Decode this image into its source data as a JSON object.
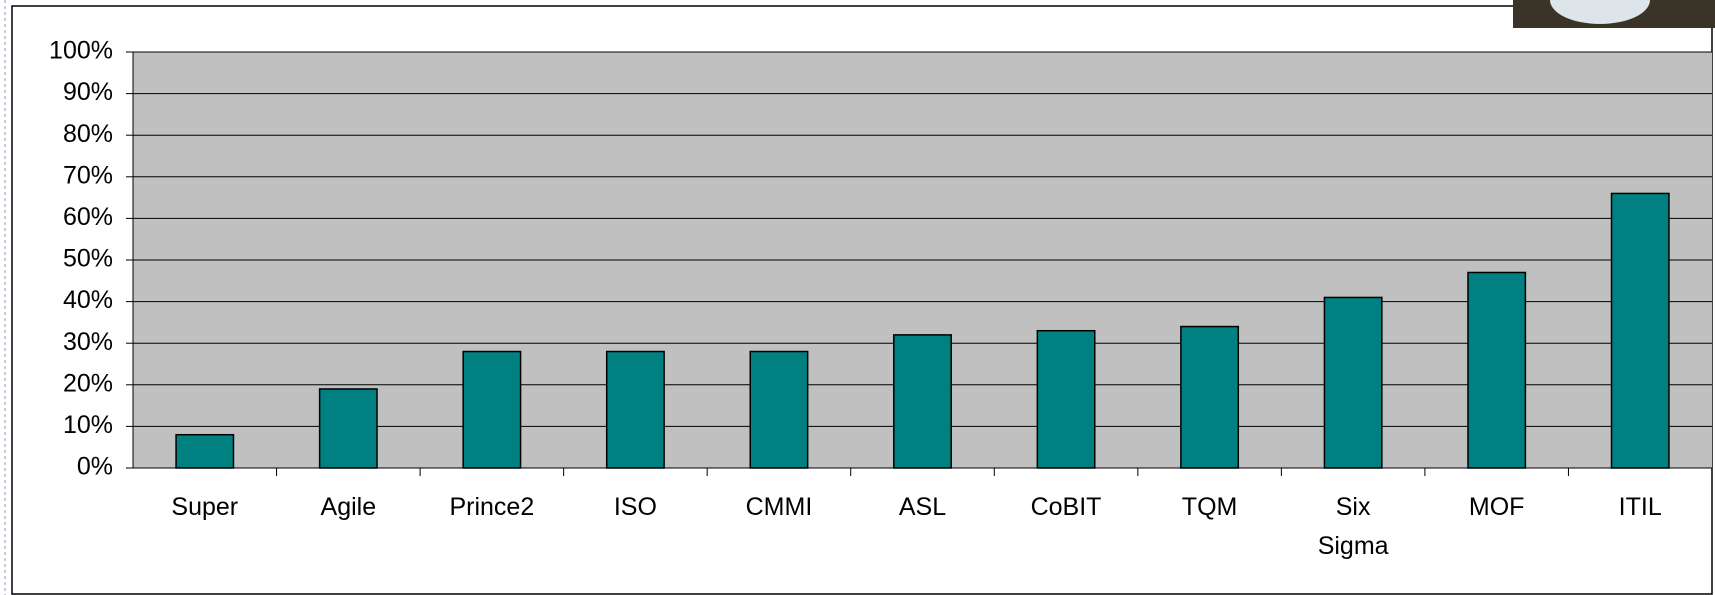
{
  "chart_data": {
    "type": "bar",
    "categories": [
      "Super",
      "Agile",
      "Prince2",
      "ISO",
      "CMMI",
      "ASL",
      "CoBIT",
      "TQM",
      "Six Sigma",
      "MOF",
      "ITIL"
    ],
    "values": [
      8,
      19,
      28,
      28,
      28,
      32,
      33,
      34,
      41,
      47,
      66
    ],
    "color": "#008080",
    "ylim": [
      0,
      100
    ],
    "yticks": [
      {
        "value": 0,
        "label": "0%"
      },
      {
        "value": 10,
        "label": "10%"
      },
      {
        "value": 20,
        "label": "20%"
      },
      {
        "value": 30,
        "label": "30%"
      },
      {
        "value": 40,
        "label": "40%"
      },
      {
        "value": 50,
        "label": "50%"
      },
      {
        "value": 60,
        "label": "60%"
      },
      {
        "value": 70,
        "label": "70%"
      },
      {
        "value": 80,
        "label": "80%"
      },
      {
        "value": 90,
        "label": "90%"
      },
      {
        "value": 100,
        "label": "100%"
      }
    ],
    "grid": true
  }
}
